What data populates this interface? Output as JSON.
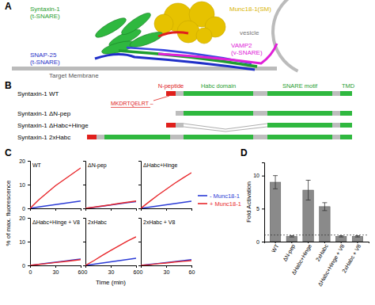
{
  "panel_labels": [
    "A",
    "B",
    "C",
    "D"
  ],
  "diagram_a": {
    "labels": [
      {
        "lines": [
          "Syntaxin-1",
          "(t-SNARE)"
        ],
        "color": "#1f9e2f"
      },
      {
        "lines": [
          "Munc18-1(SM)"
        ],
        "color": "#d8b400"
      },
      {
        "lines": [
          "vesicle"
        ],
        "color": "#777777"
      },
      {
        "lines": [
          "VAMP2",
          "(v-SNARE)"
        ],
        "color": "#e020d8"
      },
      {
        "lines": [
          "SNAP-25",
          "(t-SNARE)"
        ],
        "color": "#1f2fc8"
      },
      {
        "lines": [
          "Target Membrane"
        ],
        "color": "#555555"
      }
    ]
  },
  "diagram_b": {
    "constructs": [
      "Syntaxin-1 WT",
      "Syntaxin-1 ΔN-pep",
      "Syntaxin-1 ΔHabc+Hinge",
      "Syntaxin-1 2xHabc"
    ],
    "domains": [
      "N-peptide",
      "Habc domain",
      "SNARE motif",
      "TMD"
    ],
    "sequence": "MKDRTQELRT –"
  },
  "chart_data": [
    {
      "type": "line",
      "title": "WT",
      "y_label": "% of max. fluorescence",
      "tick_labels": "y",
      "x": [
        0,
        10,
        20,
        30,
        40,
        50,
        60
      ],
      "xlim": [
        0,
        60
      ],
      "xticks": [
        0,
        30,
        60
      ],
      "ylim": [
        0,
        20
      ],
      "yticks": [
        0,
        10,
        20
      ],
      "series": [
        {
          "color": "#2b3bd6",
          "values": [
            0,
            0.6,
            1.1,
            1.6,
            2.1,
            2.6,
            3.1
          ]
        },
        {
          "color": "#e8262a",
          "values": [
            0,
            3.5,
            6.5,
            9.5,
            12,
            14.5,
            17
          ]
        }
      ]
    },
    {
      "type": "line",
      "title": "ΔN-pep",
      "tick_labels": false,
      "x": [
        0,
        10,
        20,
        30,
        40,
        50,
        60
      ],
      "xlim": [
        0,
        60
      ],
      "xticks": [
        0,
        30,
        60
      ],
      "ylim": [
        0,
        20
      ],
      "yticks": [
        0,
        10,
        20
      ],
      "series": [
        {
          "color": "#2b3bd6",
          "values": [
            0,
            0.4,
            0.9,
            1.4,
            1.9,
            2.4,
            2.8
          ]
        },
        {
          "color": "#e8262a",
          "values": [
            0,
            0.5,
            1,
            1.5,
            2.1,
            2.6,
            3.1
          ]
        }
      ]
    },
    {
      "type": "line",
      "title": "ΔHabc+Hinge",
      "tick_labels": false,
      "legend": "right",
      "x": [
        0,
        10,
        20,
        30,
        40,
        50,
        60
      ],
      "xlim": [
        0,
        60
      ],
      "xticks": [
        0,
        30,
        60
      ],
      "ylim": [
        0,
        20
      ],
      "yticks": [
        0,
        10,
        20
      ],
      "series": [
        {
          "name": "- Munc18-1",
          "color": "#2b3bd6",
          "values": [
            0,
            0.5,
            1,
            1.5,
            2,
            2.5,
            3
          ]
        },
        {
          "name": "+ Munc18-1",
          "color": "#e8262a",
          "values": [
            0,
            2.8,
            5.5,
            8,
            10.5,
            12.8,
            15
          ]
        }
      ]
    },
    {
      "type": "line",
      "title": "ΔHabc+Hinge + V8",
      "x": [
        0,
        10,
        20,
        30,
        40,
        50,
        60
      ],
      "xlim": [
        0,
        60
      ],
      "xticks": [
        0,
        30,
        60
      ],
      "ylim": [
        0,
        20
      ],
      "yticks": [
        0,
        10,
        20
      ],
      "series": [
        {
          "color": "#2b3bd6",
          "values": [
            0,
            0.45,
            0.9,
            1.35,
            1.8,
            2.25,
            2.7
          ]
        },
        {
          "color": "#e8262a",
          "values": [
            0,
            0.4,
            0.8,
            1.2,
            1.6,
            2,
            2.4
          ]
        }
      ]
    },
    {
      "type": "line",
      "title": "2xHabc",
      "x_label": "Time (min)",
      "tick_labels": "x",
      "x": [
        0,
        10,
        20,
        30,
        40,
        50,
        60
      ],
      "xlim": [
        0,
        60
      ],
      "xticks": [
        0,
        30,
        60
      ],
      "ylim": [
        0,
        20
      ],
      "yticks": [
        0,
        10,
        20
      ],
      "series": [
        {
          "color": "#2b3bd6",
          "values": [
            0,
            0.5,
            1,
            1.5,
            2,
            2.5,
            3
          ]
        },
        {
          "color": "#e8262a",
          "values": [
            0,
            2,
            4.2,
            6.3,
            8.3,
            10.3,
            12
          ]
        }
      ]
    },
    {
      "type": "line",
      "title": "2xHabc + V8",
      "tick_labels": "x",
      "x": [
        0,
        10,
        20,
        30,
        40,
        50,
        60
      ],
      "xlim": [
        0,
        60
      ],
      "xticks": [
        0,
        30,
        60
      ],
      "ylim": [
        0,
        20
      ],
      "yticks": [
        0,
        10,
        20
      ],
      "series": [
        {
          "color": "#2b3bd6",
          "values": [
            0,
            0.4,
            0.8,
            1.2,
            1.6,
            2,
            2.4
          ]
        },
        {
          "color": "#e8262a",
          "values": [
            0,
            0.3,
            0.7,
            1,
            1.4,
            1.7,
            2
          ]
        }
      ]
    },
    {
      "type": "bar",
      "y_label": "Fold Activation",
      "categories": [
        "WT",
        "ΔN-pep",
        "ΔHabc+Hinge",
        "2xHabc",
        "ΔHabc+Hinge + V8",
        "2xHabc + V8"
      ],
      "values": [
        9,
        0.8,
        7.8,
        5.3,
        0.8,
        0.8
      ],
      "errors": [
        1.0,
        0.1,
        1.5,
        0.6,
        0.1,
        0.1
      ],
      "reference_line": 1,
      "color": "#8a8a8a",
      "ylim": [
        0,
        12
      ],
      "yticks": [
        0,
        5,
        10
      ]
    }
  ]
}
